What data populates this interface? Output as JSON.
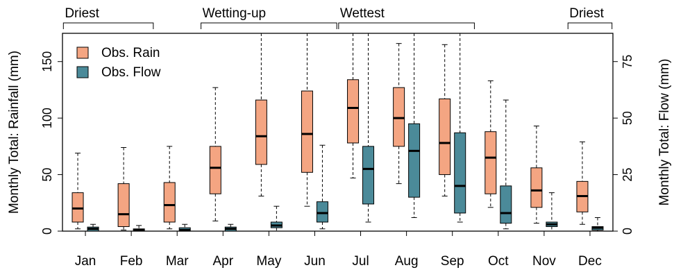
{
  "chart_data": {
    "type": "box",
    "categories": [
      "Jan",
      "Feb",
      "Mar",
      "Apr",
      "May",
      "Jun",
      "Jul",
      "Aug",
      "Sep",
      "Oct",
      "Nov",
      "Dec"
    ],
    "left_axis": {
      "label": "Monthly Total: Rainfall (mm)",
      "range": [
        0,
        175
      ],
      "ticks": [
        0,
        50,
        100,
        150
      ]
    },
    "right_axis": {
      "label": "Monthly Total: Flow (mm)",
      "range": [
        0,
        87.5
      ],
      "ticks": [
        0,
        25,
        50,
        75
      ]
    },
    "legend": {
      "placement": "top-left",
      "entries": [
        "Obs. Rain",
        "Obs. Flow"
      ]
    },
    "series": [
      {
        "name": "Obs. Rain",
        "axis": "left",
        "color": "#F4A582",
        "stats": [
          {
            "min": 2,
            "q1": 8,
            "median": 20,
            "q3": 34,
            "max": 69
          },
          {
            "min": 1,
            "q1": 4,
            "median": 15,
            "q3": 42,
            "max": 74
          },
          {
            "min": 2,
            "q1": 8,
            "median": 23,
            "q3": 43,
            "max": 75
          },
          {
            "min": 9,
            "q1": 33,
            "median": 56,
            "q3": 75,
            "max": 127
          },
          {
            "min": 31,
            "q1": 59,
            "median": 84,
            "q3": 116,
            "max": 178
          },
          {
            "min": 22,
            "q1": 52,
            "median": 86,
            "q3": 124,
            "max": 178
          },
          {
            "min": 47,
            "q1": 78,
            "median": 109,
            "q3": 134,
            "max": 178
          },
          {
            "min": 42,
            "q1": 75,
            "median": 100,
            "q3": 127,
            "max": 166
          },
          {
            "min": 31,
            "q1": 50,
            "median": 78,
            "q3": 117,
            "max": 165
          },
          {
            "min": 21,
            "q1": 33,
            "median": 65,
            "q3": 88,
            "max": 133
          },
          {
            "min": 7,
            "q1": 21,
            "median": 36,
            "q3": 56,
            "max": 93
          },
          {
            "min": 6,
            "q1": 17,
            "median": 31,
            "q3": 44,
            "max": 79
          }
        ]
      },
      {
        "name": "Obs. Flow",
        "axis": "right",
        "color": "#4B8A99",
        "stats": [
          {
            "min": 0,
            "q1": 0,
            "median": 1,
            "q3": 1.8,
            "max": 3
          },
          {
            "min": 0,
            "q1": 0,
            "median": 0.5,
            "q3": 1,
            "max": 2.5
          },
          {
            "min": 0,
            "q1": 0,
            "median": 0.5,
            "q3": 1.5,
            "max": 3
          },
          {
            "min": 0,
            "q1": 0,
            "median": 1,
            "q3": 1.8,
            "max": 3
          },
          {
            "min": 0,
            "q1": 1.5,
            "median": 2.5,
            "q3": 4,
            "max": 11
          },
          {
            "min": 1,
            "q1": 4,
            "median": 8,
            "q3": 13,
            "max": 38
          },
          {
            "min": 4,
            "q1": 12,
            "median": 27.5,
            "q3": 37.5,
            "max": 89
          },
          {
            "min": 6,
            "q1": 15,
            "median": 35.5,
            "q3": 47.5,
            "max": 89
          },
          {
            "min": 4,
            "q1": 8,
            "median": 20,
            "q3": 43.5,
            "max": 89
          },
          {
            "min": 1,
            "q1": 3.5,
            "median": 8,
            "q3": 20,
            "max": 58
          },
          {
            "min": 0,
            "q1": 2,
            "median": 3,
            "q3": 4,
            "max": 17
          },
          {
            "min": 0,
            "q1": 0.5,
            "median": 1.5,
            "q3": 2,
            "max": 6
          }
        ]
      }
    ],
    "season_labels": [
      {
        "label": "Driest",
        "from": "Jan",
        "to": "Feb"
      },
      {
        "label": "Wetting-up",
        "from": "Apr",
        "to": "Jun"
      },
      {
        "label": "Wettest",
        "from": "Jul",
        "to": "Sep"
      },
      {
        "label": "Driest",
        "from": "Dec",
        "to": "Dec"
      }
    ],
    "grid": false
  }
}
